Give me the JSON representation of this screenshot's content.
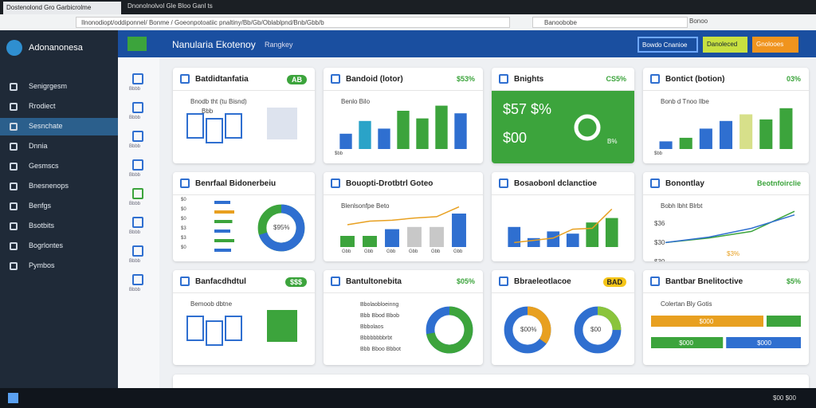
{
  "browser": {
    "tabs": [
      "Dostenolond Gro Garbicrolme",
      "Dnonolnolvol Gle Bloo Ganl ts"
    ],
    "address": "Ilnonodiopt/oddiponnel/ Bonme / Goeonpotoatiic pnaltiny/Bb/Gb/Oblablpnd/Bnb/Gbb/b",
    "search": "Banoobobe",
    "ext": "Bonoo"
  },
  "sidebar": {
    "logo": "Adonanonesa",
    "items": [
      "Senigrgesm",
      "Rrodiect",
      "Sesnchate",
      "Dnnia",
      "Gesmscs",
      "Bnesnenops",
      "Benfgs",
      "Bsotbits",
      "Bogrlontes",
      "Pymbos"
    ],
    "active": 2
  },
  "header": {
    "title": "Nanularia Ekotenoy",
    "subtitle": "Rangkey",
    "buttons": [
      "Bowdo Cnanioe",
      "Danoleced",
      "Gnolooes"
    ]
  },
  "icons": [
    "Bbbb",
    "Bbbb",
    "Bbbb",
    "Bbbb",
    "Bbbb",
    "Bbbb",
    "Bbbb",
    "Bbbb"
  ],
  "cards": [
    {
      "title": "Batdidtanfatia",
      "badge": "AB",
      "sub": "Bnodb tht (tu Bisnd)",
      "note": "Bbb"
    },
    {
      "title": "Bandoid (lotor)",
      "badge": "$53%",
      "sub": "Benlo Bilo",
      "axis": "$bb",
      "bars": [
        30,
        55,
        40,
        75,
        60,
        85,
        70
      ],
      "colors": [
        "#2f6fd0",
        "#2aa3c8",
        "#2f6fd0",
        "#3ca43c",
        "#3ca43c",
        "#3ca43c",
        "#2f6fd0"
      ]
    },
    {
      "title": "Bnights",
      "badge": "CS5%",
      "big": [
        "$57 $%",
        "$00"
      ],
      "note": "B%"
    },
    {
      "title": "Bontict (botion)",
      "badge": "03%",
      "sub": "Bonb d Tnoo Ilbe",
      "axis": "$bb",
      "bars": [
        15,
        22,
        40,
        55,
        68,
        58,
        80
      ],
      "colors": [
        "#2f6fd0",
        "#3ca43c",
        "#2f6fd0",
        "#2f6fd0",
        "#d7e08a",
        "#3ca43c",
        "#3ca43c"
      ]
    },
    {
      "title": "Benrfaal Bidonerbeiu",
      "list": [
        "$0",
        "$0",
        "$0",
        "$3",
        "$3",
        "$0"
      ],
      "hbars": [
        40,
        50,
        45,
        40,
        50,
        42
      ],
      "colors": [
        "#2f6fd0",
        "#e8a020",
        "#3ca43c",
        "#2f6fd0",
        "#3ca43c",
        "#2f6fd0"
      ],
      "donut": 70,
      "donut_label": "$95%"
    },
    {
      "title": "Bouopti-Drotbtrl Goteo",
      "sub": "Blenlsonfpe Beto",
      "bars": [
        25,
        25,
        40,
        45,
        45,
        75
      ],
      "colors": [
        "#3ca43c",
        "#3ca43c",
        "#2f6fd0",
        "#c8c8c8",
        "#c8c8c8",
        "#2f6fd0"
      ],
      "line": [
        50,
        58,
        60,
        65,
        68,
        90
      ],
      "labels": [
        "Gbb",
        "Gbb",
        "Gbb",
        "Gbb",
        "Gbb",
        "Gbb"
      ]
    },
    {
      "title": "Bosaobonl dclanctioe",
      "bars": [
        45,
        20,
        35,
        30,
        55,
        65
      ],
      "colors": [
        "#2f6fd0",
        "#2f6fd0",
        "#2f6fd0",
        "#2f6fd0",
        "#3ca43c",
        "#3ca43c"
      ],
      "line": [
        10,
        15,
        20,
        40,
        42,
        85
      ]
    },
    {
      "title": "Bonontlay",
      "badge": "Beotnfoirclie",
      "sub": "Bobh lbht Blrbt",
      "yt": [
        "$36",
        "$30",
        "$30"
      ],
      "line": [
        10,
        20,
        35,
        80
      ],
      "line2": [
        10,
        22,
        42,
        72
      ],
      "note": "$3%"
    },
    {
      "title": "Banfacdhdtul",
      "badge": "$$$",
      "sub": "Bemoob dbtne"
    },
    {
      "title": "Bantultonebita",
      "badge": "$05%",
      "rows": [
        "Bbolaobloeinng",
        "Bbb Bbod Bbob",
        "Bbbolaos",
        "Bbbbbbbbrbt",
        "Bbb Bboo Bbbot"
      ],
      "donut": 72
    },
    {
      "title": "Bbraeleotlacoe",
      "badge": "BAD",
      "donuts": [
        {
          "value": 35,
          "label": "$00%"
        },
        {
          "value": 25,
          "label": "$00"
        }
      ]
    },
    {
      "title": "Bantbar Bnelitoctive",
      "badge": "$5%",
      "sub": "Colertan Bly Gotis",
      "split": [
        {
          "value": 75,
          "label": "$000"
        },
        {
          "value": 25
        },
        {
          "value": 48,
          "label": "$000"
        },
        {
          "value": 52,
          "label": "$000"
        }
      ]
    }
  ],
  "taskbar": {
    "time": "$00 $00"
  }
}
